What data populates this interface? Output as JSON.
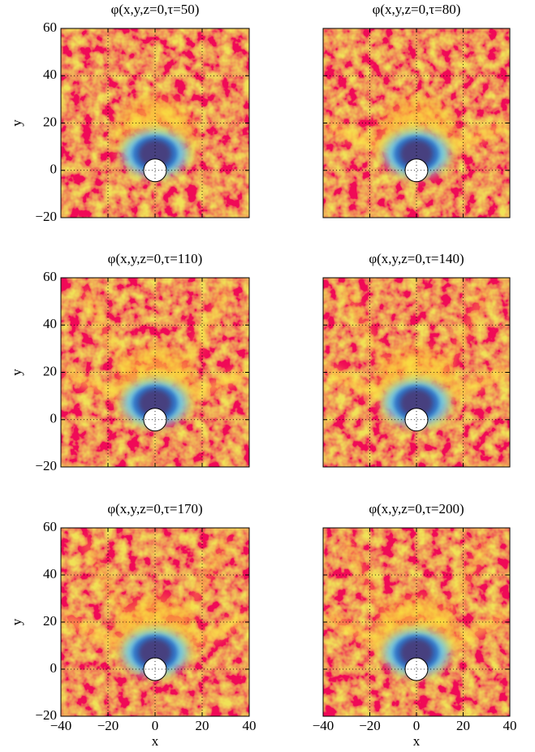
{
  "chart_data": [
    {
      "type": "heatmap",
      "title": "φ(x,y,z=0,τ=50)",
      "ylabel": "y",
      "xlim": [
        -40,
        40
      ],
      "ylim": [
        -20,
        60
      ],
      "xticks": [
        {
          "value": -40,
          "label": "−40"
        },
        {
          "value": -20,
          "label": "−20"
        },
        0,
        20,
        40
      ],
      "yticks": [
        {
          "value": -20,
          "label": "−20"
        },
        0,
        20,
        40,
        60
      ],
      "x_tick_labels": false,
      "y_tick_labels": true,
      "grid": true
    },
    {
      "type": "heatmap",
      "title": "φ(x,y,z=0,τ=80)",
      "xlim": [
        -40,
        40
      ],
      "ylim": [
        -20,
        60
      ],
      "xticks": [
        {
          "value": -40,
          "label": "−40"
        },
        {
          "value": -20,
          "label": "−20"
        },
        0,
        20,
        40
      ],
      "yticks": [
        {
          "value": -20,
          "label": "−20"
        },
        0,
        20,
        40,
        60
      ],
      "x_tick_labels": false,
      "y_tick_labels": false,
      "grid": true
    },
    {
      "type": "heatmap",
      "title": "φ(x,y,z=0,τ=110)",
      "ylabel": "y",
      "xlim": [
        -40,
        40
      ],
      "ylim": [
        -20,
        60
      ],
      "xticks": [
        {
          "value": -40,
          "label": "−40"
        },
        {
          "value": -20,
          "label": "−20"
        },
        0,
        20,
        40
      ],
      "yticks": [
        {
          "value": -20,
          "label": "−20"
        },
        0,
        20,
        40,
        60
      ],
      "x_tick_labels": false,
      "y_tick_labels": true,
      "grid": true
    },
    {
      "type": "heatmap",
      "title": "φ(x,y,z=0,τ=140)",
      "xlim": [
        -40,
        40
      ],
      "ylim": [
        -20,
        60
      ],
      "xticks": [
        {
          "value": -40,
          "label": "−40"
        },
        {
          "value": -20,
          "label": "−20"
        },
        0,
        20,
        40
      ],
      "yticks": [
        {
          "value": -20,
          "label": "−20"
        },
        0,
        20,
        40,
        60
      ],
      "x_tick_labels": false,
      "y_tick_labels": false,
      "grid": true
    },
    {
      "type": "heatmap",
      "title": "φ(x,y,z=0,τ=170)",
      "ylabel": "y",
      "xlabel": "x",
      "xlim": [
        -40,
        40
      ],
      "ylim": [
        -20,
        60
      ],
      "xticks": [
        {
          "value": -40,
          "label": "−40"
        },
        {
          "value": -20,
          "label": "−20"
        },
        0,
        20,
        40
      ],
      "yticks": [
        {
          "value": -20,
          "label": "−20"
        },
        0,
        20,
        40,
        60
      ],
      "x_tick_labels": true,
      "y_tick_labels": true,
      "grid": true
    },
    {
      "type": "heatmap",
      "title": "φ(x,y,z=0,τ=200)",
      "xlabel": "x",
      "xlim": [
        -40,
        40
      ],
      "ylim": [
        -20,
        60
      ],
      "xticks": [
        {
          "value": -40,
          "label": "−40"
        },
        {
          "value": -20,
          "label": "−20"
        },
        0,
        20,
        40
      ],
      "yticks": [
        {
          "value": -20,
          "label": "−20"
        },
        0,
        20,
        40,
        60
      ],
      "x_tick_labels": true,
      "y_tick_labels": false,
      "grid": true
    }
  ]
}
